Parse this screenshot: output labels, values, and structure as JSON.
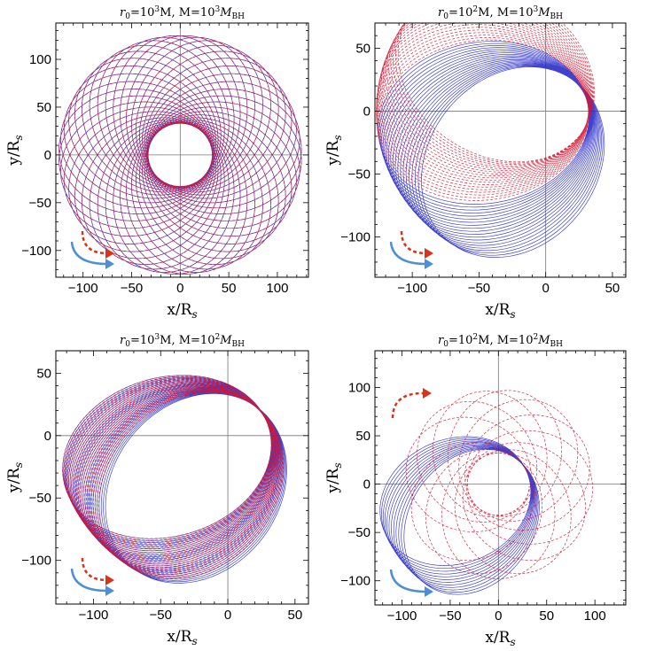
{
  "colors": {
    "gr": "#d7142f",
    "newton": "#2a2ec9",
    "arrow_gr": "#d9341a",
    "arrow_newton": "#4a8fd8"
  },
  "chart_data": [
    {
      "type": "line",
      "title": "r₀=10³M, M=10³M",
      "title_parts": {
        "r0": "r",
        "r0_sub": "0",
        "r0_rest": "=10",
        "r0_exp": "3",
        "mid": "M, M=10",
        "m_exp": "3",
        "m_sym": "M",
        "m_sub": "BH"
      },
      "xlabel": "x/R",
      "ylabel": "y/R",
      "label_sub": "s",
      "xlim": [
        -128,
        132
      ],
      "ylim": [
        -128,
        138
      ],
      "xticks": [
        -100,
        -50,
        0,
        50,
        100
      ],
      "yticks": [
        -100,
        -50,
        0,
        50,
        100
      ],
      "xtick_labels": [
        "−100",
        "−50",
        "0",
        "50",
        "100"
      ],
      "ytick_labels": [
        "−100",
        "−50",
        "0",
        "50",
        "100"
      ],
      "series": [
        {
          "name": "newtonian (blue, solid)",
          "orbit": {
            "pericenter": 33,
            "apocenter": 125,
            "initial_angle_deg": 0,
            "precession_deg": 9,
            "loops": 40
          }
        },
        {
          "name": "relativistic (red, dashed)",
          "orbit": {
            "pericenter": 33,
            "apocenter": 125,
            "initial_angle_deg": 0,
            "precession_deg": 9,
            "loops": 40
          }
        }
      ],
      "arrows": [
        {
          "color": "newton",
          "direction": "counterclockwise",
          "location": "bottom-left"
        },
        {
          "color": "gr",
          "direction": "counterclockwise",
          "location": "bottom-left"
        }
      ]
    },
    {
      "type": "line",
      "title": "r₀=10²M, M=10³M",
      "title_parts": {
        "r0": "r",
        "r0_sub": "0",
        "r0_rest": "=10",
        "r0_exp": "2",
        "mid": "M, M=10",
        "m_exp": "3",
        "m_sym": "M",
        "m_sub": "BH"
      },
      "xlabel": "x/R",
      "ylabel": "y/R",
      "label_sub": "s",
      "xlim": [
        -128,
        60
      ],
      "ylim": [
        -132,
        70
      ],
      "xticks": [
        -100,
        -50,
        0,
        50
      ],
      "yticks": [
        -100,
        -50,
        0,
        50
      ],
      "xtick_labels": [
        "−100",
        "−50",
        "0",
        "50"
      ],
      "ytick_labels": [
        "−100",
        "−50",
        "0",
        "50"
      ],
      "series": [
        {
          "name": "newtonian (blue, solid)",
          "orbit": {
            "pericenter": 32,
            "apocenter": 127,
            "initial_angle_deg": 10,
            "precession_deg": 2.5,
            "loops": 20
          }
        },
        {
          "name": "relativistic (red, dashed)",
          "orbit": {
            "pericenter": 32,
            "apocenter": 127,
            "initial_angle_deg": 10,
            "precession_deg": -2.5,
            "loops": 20
          }
        }
      ],
      "arrows": [
        {
          "color": "newton",
          "direction": "counterclockwise",
          "location": "bottom-left"
        },
        {
          "color": "gr",
          "direction": "counterclockwise",
          "location": "bottom-left"
        }
      ]
    },
    {
      "type": "line",
      "title": "r₀=10³M, M=10²M",
      "title_parts": {
        "r0": "r",
        "r0_sub": "0",
        "r0_rest": "=10",
        "r0_exp": "3",
        "mid": "M, M=10",
        "m_exp": "2",
        "m_sym": "M",
        "m_sub": "BH"
      },
      "xlabel": "x/R",
      "ylabel": "y/R",
      "label_sub": "s",
      "xlim": [
        -128,
        60
      ],
      "ylim": [
        -135,
        68
      ],
      "xticks": [
        -100,
        -50,
        0,
        50
      ],
      "yticks": [
        -100,
        -50,
        0,
        50
      ],
      "xtick_labels": [
        "−100",
        "−50",
        "0",
        "50"
      ],
      "ytick_labels": [
        "−100",
        "−50",
        "0",
        "50"
      ],
      "series": [
        {
          "name": "newtonian (blue, solid)",
          "orbit": {
            "pericenter": 31,
            "apocenter": 128,
            "initial_angle_deg": 20,
            "precession_deg": 1.6,
            "loops": 26
          }
        },
        {
          "name": "relativistic (red, dashed)",
          "orbit": {
            "pericenter": 31,
            "apocenter": 128,
            "initial_angle_deg": 20,
            "precession_deg": 1.4,
            "loops": 26
          }
        }
      ],
      "arrows": [
        {
          "color": "newton",
          "direction": "counterclockwise",
          "location": "bottom-left"
        },
        {
          "color": "gr",
          "direction": "counterclockwise",
          "location": "bottom-left"
        }
      ]
    },
    {
      "type": "line",
      "title": "r₀=10²M, M=10²M",
      "title_parts": {
        "r0": "r",
        "r0_sub": "0",
        "r0_rest": "=10",
        "r0_exp": "2",
        "mid": "M, M=10",
        "m_exp": "2",
        "m_sym": "M",
        "m_sub": "BH"
      },
      "xlabel": "x/R",
      "ylabel": "y/R",
      "label_sub": "s",
      "xlim": [
        -128,
        132
      ],
      "ylim": [
        -125,
        138
      ],
      "xticks": [
        -100,
        -50,
        0,
        50,
        100
      ],
      "yticks": [
        -100,
        -50,
        0,
        50,
        100
      ],
      "xtick_labels": [
        "−100",
        "−50",
        "0",
        "50",
        "100"
      ],
      "ytick_labels": [
        "−100",
        "−50",
        "0",
        "50",
        "100"
      ],
      "series": [
        {
          "name": "newtonian (blue, solid)",
          "orbit": {
            "pericenter": 32,
            "apocenter": 128,
            "initial_angle_deg": 20,
            "precession_deg": 3,
            "loops": 12
          }
        },
        {
          "name": "relativistic (red, dashed)",
          "orbit": {
            "pericenter": 32,
            "apocenter": 98,
            "initial_angle_deg": 20,
            "precession_deg": 28,
            "loops": 12
          }
        }
      ],
      "arrows": [
        {
          "color": "newton",
          "direction": "counterclockwise",
          "location": "bottom-left"
        },
        {
          "color": "gr",
          "direction": "clockwise",
          "location": "top-left"
        }
      ]
    }
  ]
}
